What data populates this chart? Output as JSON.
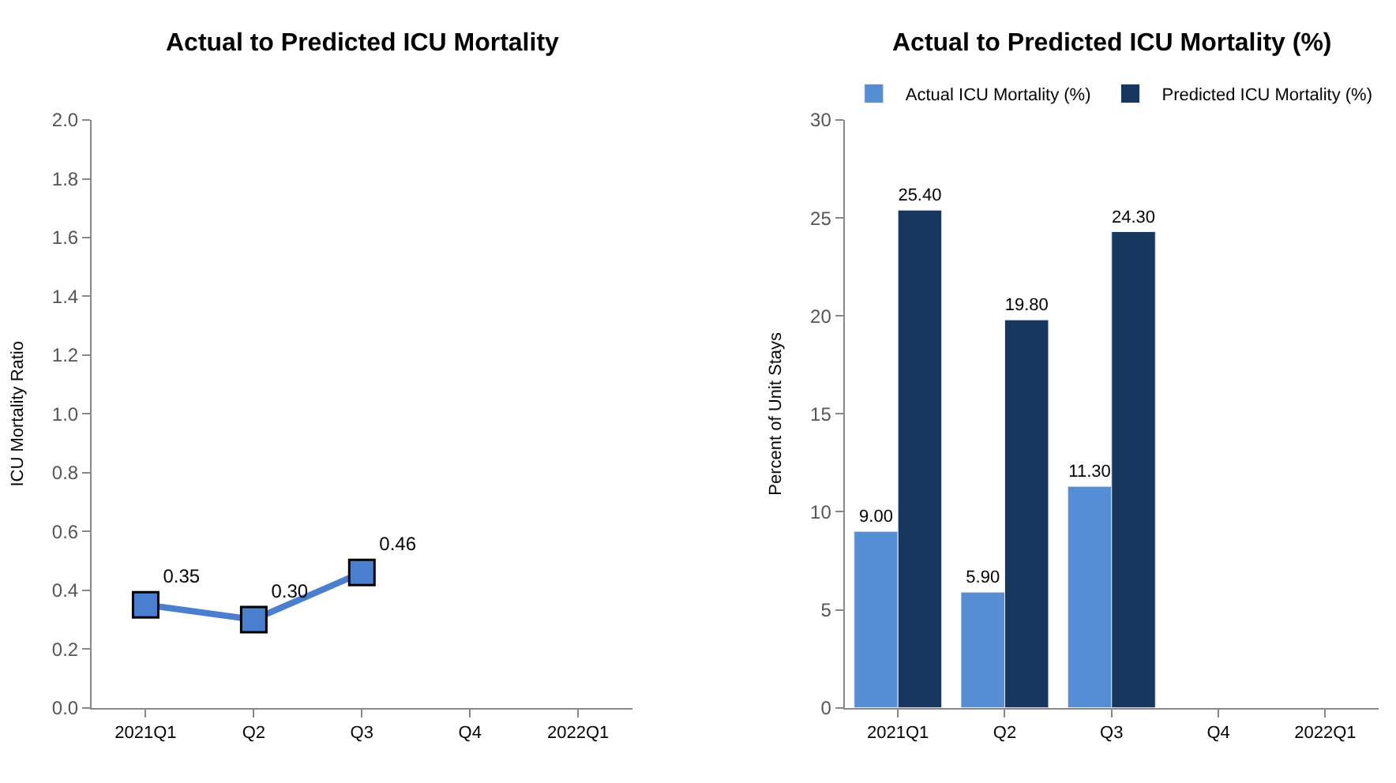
{
  "chart_data": [
    {
      "type": "line",
      "title": "Actual to Predicted ICU Mortality",
      "ylabel": "ICU Mortality Ratio",
      "categories": [
        "2021Q1",
        "Q2",
        "Q3",
        "Q4",
        "2022Q1"
      ],
      "series": [
        {
          "color": "#4a7ecf",
          "values": [
            0.35,
            0.3,
            0.46,
            null,
            null
          ],
          "value_labels": [
            "0.35",
            "0.30",
            "0.46",
            null,
            null
          ]
        }
      ],
      "ylim": [
        0,
        2
      ],
      "yticks": [
        {
          "value": 0,
          "label": "0.0"
        },
        {
          "value": 0.2,
          "label": "0.2"
        },
        {
          "value": 0.4,
          "label": "0.4"
        },
        {
          "value": 0.6,
          "label": "0.6"
        },
        {
          "value": 0.8,
          "label": "0.8"
        },
        {
          "value": 1,
          "label": "1.0"
        },
        {
          "value": 1.2,
          "label": "1.2"
        },
        {
          "value": 1.4,
          "label": "1.4"
        },
        {
          "value": 1.6,
          "label": "1.6"
        },
        {
          "value": 1.8,
          "label": "1.8"
        },
        {
          "value": 2,
          "label": "2.0"
        }
      ],
      "marker": "square",
      "legend": false
    },
    {
      "type": "bar",
      "title": "Actual to Predicted ICU Mortality (%)",
      "ylabel": "Percent of Unit Stays",
      "categories": [
        "2021Q1",
        "Q2",
        "Q3",
        "Q4",
        "2022Q1"
      ],
      "series": [
        {
          "name": "Actual ICU Mortality (%)",
          "color": "#558ed5",
          "values": [
            9.0,
            5.9,
            11.3,
            null,
            null
          ],
          "value_labels": [
            "9.00",
            "5.90",
            "11.30",
            null,
            null
          ]
        },
        {
          "name": "Predicted ICU Mortality (%)",
          "color": "#17375e",
          "values": [
            25.4,
            19.8,
            24.3,
            null,
            null
          ],
          "value_labels": [
            "25.40",
            "19.80",
            "24.30",
            null,
            null
          ]
        }
      ],
      "ylim": [
        0,
        30
      ],
      "yticks": [
        0,
        5,
        10,
        15,
        20,
        25,
        30
      ],
      "legend": "top"
    }
  ]
}
